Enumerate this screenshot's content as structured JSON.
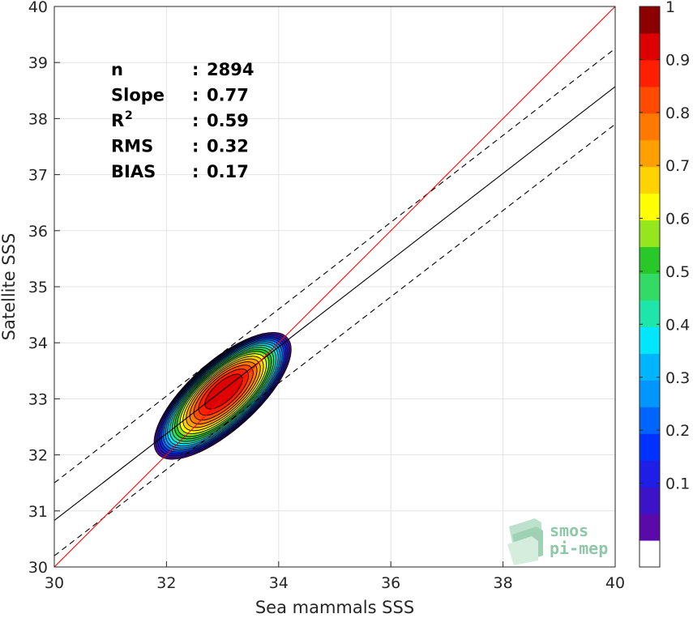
{
  "chart_data": {
    "type": "contour",
    "xlabel": "Sea mammals SSS",
    "ylabel": "Satellite SSS",
    "xlim": [
      30,
      40
    ],
    "ylim": [
      30,
      40
    ],
    "xticks": [
      "30",
      "32",
      "34",
      "36",
      "38",
      "40"
    ],
    "yticks": [
      "30",
      "31",
      "32",
      "33",
      "34",
      "35",
      "36",
      "37",
      "38",
      "39",
      "40"
    ],
    "grid": true,
    "stats": [
      {
        "label": "n",
        "sep": ": ",
        "value": "2894"
      },
      {
        "label": "Slope",
        "sep": ": ",
        "value": "0.77"
      },
      {
        "label": "R",
        "sup": "2",
        "sep": ": ",
        "value": "0.59"
      },
      {
        "label": "RMS",
        "sep": ": ",
        "value": "0.32"
      },
      {
        "label": "BIAS",
        "sep": ": ",
        "value": "0.17"
      }
    ],
    "reference_lines": {
      "identity": {
        "color": "#ff0000",
        "points": [
          [
            30,
            30
          ],
          [
            40,
            40
          ]
        ]
      },
      "fit": {
        "color": "#000000",
        "points": [
          [
            30,
            30.83
          ],
          [
            40,
            38.57
          ]
        ]
      },
      "fit_upper": {
        "color": "#000000",
        "style": "dashed",
        "points": [
          [
            30,
            31.5
          ],
          [
            40,
            39.25
          ]
        ]
      },
      "fit_lower": {
        "color": "#000000",
        "style": "dashed",
        "points": [
          [
            30,
            30.2
          ],
          [
            40,
            37.9
          ]
        ]
      }
    },
    "density": {
      "center": [
        33.0,
        33.05
      ],
      "description_levels": [
        0.05,
        0.1,
        0.15,
        0.2,
        0.25,
        0.3,
        0.35,
        0.4,
        0.45,
        0.5,
        0.55,
        0.6,
        0.65,
        0.7,
        0.75,
        0.8,
        0.85,
        0.9,
        0.95
      ]
    },
    "colorbar": {
      "range": [
        0,
        1
      ],
      "tick_labels": [
        "0.1",
        "0.2",
        "0.3",
        "0.4",
        "0.5",
        "0.6",
        "0.7",
        "0.8",
        "0.9",
        "1"
      ],
      "tick_values": [
        0.1,
        0.2,
        0.3,
        0.4,
        0.5,
        0.6,
        0.7,
        0.8,
        0.9,
        1.0
      ],
      "colors": [
        "#ffffff",
        "#5a0aaa",
        "#3c14c8",
        "#1e1ee6",
        "#0032ff",
        "#0064ff",
        "#0096ff",
        "#00b4ff",
        "#00e6ff",
        "#1ee6aa",
        "#32dc64",
        "#28c828",
        "#96e61e",
        "#ffff00",
        "#ffd200",
        "#ffa000",
        "#ff7800",
        "#ff4b00",
        "#ff1e00",
        "#dc0000",
        "#8c0000"
      ]
    }
  },
  "logo": {
    "line1": "smos",
    "line2": "pi-mep"
  }
}
